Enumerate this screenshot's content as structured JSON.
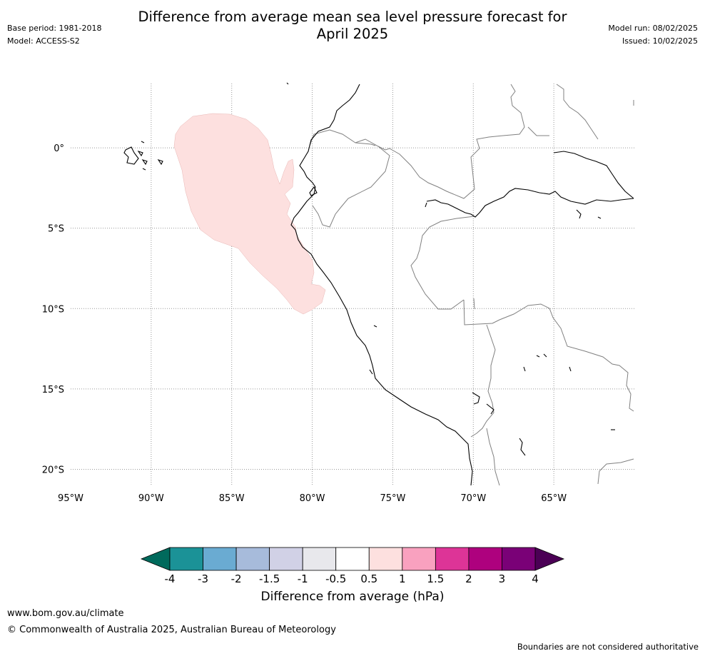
{
  "title_line1": "Difference from average mean sea level pressure forecast for",
  "title_line2": "April 2025",
  "header_left": {
    "base_period": "Base period: 1981-2018",
    "model": "Model: ACCESS-S2"
  },
  "header_right": {
    "model_run": "Model run: 08/02/2025",
    "issued": "Issued: 10/02/2025"
  },
  "map": {
    "lon_range": [
      -95,
      -60
    ],
    "lat_range": [
      -21,
      4
    ],
    "lat_ticks": [
      {
        "lat": 0,
        "label": "0°"
      },
      {
        "lat": -5,
        "label": "5°S"
      },
      {
        "lat": -10,
        "label": "10°S"
      },
      {
        "lat": -15,
        "label": "15°S"
      },
      {
        "lat": -20,
        "label": "20°S"
      }
    ],
    "lon_ticks": [
      {
        "lon": -95,
        "label": "95°W"
      },
      {
        "lon": -90,
        "label": "90°W"
      },
      {
        "lon": -85,
        "label": "85°W"
      },
      {
        "lon": -80,
        "label": "80°W"
      },
      {
        "lon": -75,
        "label": "75°W"
      },
      {
        "lon": -70,
        "label": "70°W"
      },
      {
        "lon": -65,
        "label": "65°W"
      }
    ],
    "grid": "dotted",
    "anomaly_region": {
      "category": "0.5 to 1",
      "color": "#fde0df"
    }
  },
  "colorbar": {
    "label": "Difference from average (hPa)",
    "under_color": "#006a5c",
    "over_color": "#4b0055",
    "colors": [
      "#1b9297",
      "#6aabd2",
      "#a7bbdb",
      "#d1d1e6",
      "#e8e8ec",
      "#ffffff",
      "#fde0df",
      "#f9a1bf",
      "#dd3497",
      "#ae017e",
      "#7a0177"
    ],
    "tick_labels": [
      "-4",
      "-3",
      "-2",
      "-1.5",
      "-1",
      "-0.5",
      "0.5",
      "1",
      "1.5",
      "2",
      "3",
      "4"
    ]
  },
  "footer": {
    "url": "www.bom.gov.au/climate",
    "copyright": "© Commonwealth of Australia 2025, Australian Bureau of Meteorology",
    "note": "Boundaries are not considered authoritative"
  }
}
